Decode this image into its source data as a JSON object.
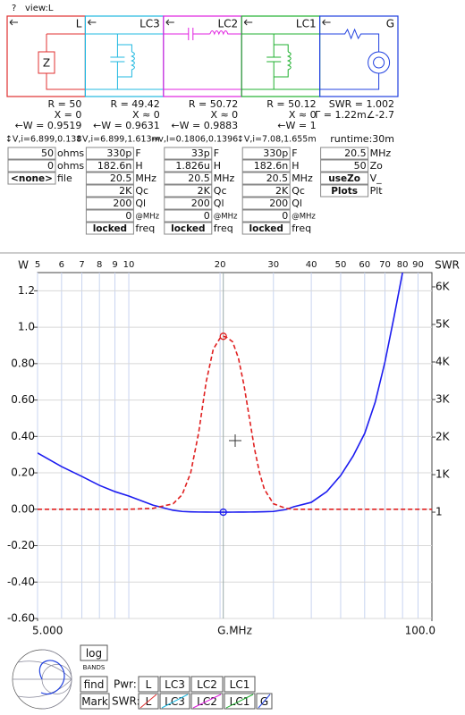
{
  "header": {
    "help": "?",
    "view": "view:L"
  },
  "blocks": [
    {
      "label": "L",
      "color": "#e03030",
      "symbol": "Z",
      "stats": [
        "R = 50",
        "X = 0",
        "←W = 0.9519",
        "↕V,i=6.899,0.138"
      ],
      "fields": [
        [
          "50",
          "ohms"
        ],
        [
          "0",
          "ohms"
        ],
        [
          "<none>",
          "file"
        ]
      ]
    },
    {
      "label": "LC3",
      "color": "#20b8e0",
      "stats": [
        "R = 49.42",
        "X ≈ 0",
        "←W = 0.9631",
        "↕V,i=6.899,1.613m"
      ],
      "fields": [
        [
          "330p",
          "F"
        ],
        [
          "182.6n",
          "H"
        ],
        [
          "20.5",
          "MHz"
        ],
        [
          "2K",
          "Qc"
        ],
        [
          "200",
          "Ql"
        ],
        [
          "0",
          "@MHz"
        ],
        [
          "locked",
          "freq"
        ]
      ]
    },
    {
      "label": "LC2",
      "color": "#e020e0",
      "stats": [
        "R = 50.72",
        "X ≈ 0",
        "←W = 0.9883",
        "↔v,I=0.1806,0.1396"
      ],
      "fields": [
        [
          "33p",
          "F"
        ],
        [
          "1.826u",
          "H"
        ],
        [
          "20.5",
          "MHz"
        ],
        [
          "2K",
          "Qc"
        ],
        [
          "200",
          "Ql"
        ],
        [
          "0",
          "@MHz"
        ],
        [
          "locked",
          "freq"
        ]
      ]
    },
    {
      "label": "LC1",
      "color": "#20b030",
      "stats": [
        "R = 50.12",
        "X ≈ 0",
        "←W = 1",
        "↕V,i=7.08,1.655m"
      ],
      "fields": [
        [
          "330p",
          "F"
        ],
        [
          "182.6n",
          "H"
        ],
        [
          "20.5",
          "MHz"
        ],
        [
          "2K",
          "Qc"
        ],
        [
          "200",
          "Ql"
        ],
        [
          "0",
          "@MHz"
        ],
        [
          "locked",
          "freq"
        ]
      ]
    },
    {
      "label": "G",
      "color": "#2040e0",
      "stats": [
        "SWR = 1.002",
        "Γ = 1.22m∠-2.7",
        "runtime:30m"
      ],
      "fields": [
        [
          "20.5",
          "MHz"
        ],
        [
          "50",
          "Zo"
        ],
        [
          "useZo",
          "V_"
        ],
        [
          "Plots",
          "Plt"
        ]
      ]
    }
  ],
  "chart_data": {
    "type": "line",
    "ylabel": "W",
    "y2label": "SWR",
    "xlabel": "G.MHz",
    "xscale": "log",
    "xlim": [
      5,
      100
    ],
    "xticks": [
      {
        "value": 5,
        "label": "5.000"
      },
      {
        "value": 100,
        "label": "100.0"
      }
    ],
    "x2ticks": [
      5,
      6,
      7,
      8,
      9,
      10,
      20,
      30,
      40,
      50,
      60,
      70,
      80,
      90
    ],
    "ylim": [
      -0.6,
      1.3
    ],
    "yticks": [
      {
        "value": 1.2,
        "label": "1.2"
      },
      {
        "value": 1.0,
        "label": "1.0"
      },
      {
        "value": 0.8,
        "label": "0.80"
      },
      {
        "value": 0.6,
        "label": "0.60"
      },
      {
        "value": 0.4,
        "label": "0.40"
      },
      {
        "value": 0.2,
        "label": "0.20"
      },
      {
        "value": 0,
        "label": "0.00"
      },
      {
        "value": -0.2,
        "label": "-0.20"
      },
      {
        "value": -0.4,
        "label": "-0.40"
      },
      {
        "value": -0.6,
        "label": "-0.60"
      }
    ],
    "y2lim": [
      -2830,
      6380
    ],
    "y2ticks": [
      {
        "value": 6000,
        "label": "6K"
      },
      {
        "value": 5000,
        "label": "5K"
      },
      {
        "value": 4000,
        "label": "4K"
      },
      {
        "value": 3000,
        "label": "3K"
      },
      {
        "value": 2000,
        "label": "2K"
      },
      {
        "value": 1000,
        "label": "1K"
      },
      1
    ],
    "grid": true,
    "cursor_x": 20.5,
    "x": [
      5,
      6,
      7,
      8,
      9,
      10,
      12,
      14,
      15,
      16,
      17,
      18,
      19,
      20,
      20.5,
      21,
      22,
      23,
      24,
      25,
      26,
      27,
      28,
      30,
      33,
      35,
      40,
      45,
      50,
      55,
      60,
      65,
      70,
      75,
      80,
      90,
      100
    ],
    "series": [
      {
        "color": "#1c1cf0",
        "axis": "y2",
        "linestyle": "solid",
        "values": [
          1577,
          1214,
          952,
          714,
          548,
          430,
          190,
          50,
          20,
          10,
          5,
          3,
          2,
          1.2,
          1.002,
          1.2,
          2,
          3,
          4,
          5,
          7,
          9,
          12,
          20,
          70,
          145,
          262,
          550,
          976,
          1500,
          2095,
          2929,
          4000,
          5200,
          6380,
          null,
          null
        ]
      },
      {
        "color": "#e02020",
        "axis": "y",
        "linestyle": "dashed",
        "values": [
          0,
          0,
          0,
          0,
          0,
          0,
          0.005,
          0.03,
          0.08,
          0.2,
          0.42,
          0.7,
          0.88,
          0.94,
          0.95,
          0.945,
          0.92,
          0.83,
          0.68,
          0.5,
          0.33,
          0.2,
          0.11,
          0.03,
          0.005,
          0,
          0,
          0,
          0,
          0,
          0,
          0,
          0,
          0,
          0,
          0,
          0
        ]
      }
    ]
  },
  "controls": {
    "log": "log",
    "bands": "BANDS",
    "find": "find",
    "mark": "Mark",
    "pwr": "Pwr:",
    "swr": "SWR:",
    "pwr_buttons": [
      "L",
      "LC3",
      "LC2",
      "LC1"
    ],
    "swr_buttons": [
      "L",
      "LC3",
      "LC2",
      "LC1",
      "G"
    ]
  }
}
